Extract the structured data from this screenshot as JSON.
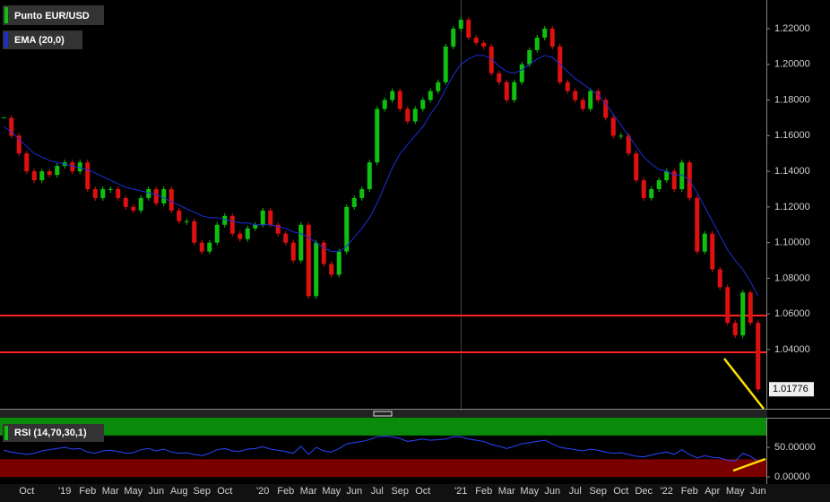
{
  "chart_data": [
    {
      "type": "candlestick",
      "categories": [
        null,
        null,
        null,
        "Oct",
        null,
        null,
        null,
        null,
        "'19",
        null,
        null,
        "Feb",
        null,
        null,
        "Mar",
        null,
        null,
        "May",
        null,
        null,
        "Jun",
        null,
        null,
        "Aug",
        null,
        null,
        "Sep",
        null,
        null,
        "Oct",
        null,
        null,
        null,
        null,
        "'20",
        null,
        null,
        "Feb",
        null,
        null,
        "Mar",
        null,
        null,
        "May",
        null,
        null,
        "Jun",
        null,
        null,
        "Jul",
        null,
        null,
        "Sep",
        null,
        null,
        "Oct",
        null,
        null,
        null,
        null,
        "'21",
        null,
        null,
        "Feb",
        null,
        null,
        "Mar",
        null,
        null,
        "May",
        null,
        null,
        "Jun",
        null,
        null,
        "Jul",
        null,
        null,
        "Sep",
        null,
        null,
        "Oct",
        null,
        null,
        "Dec",
        null,
        null,
        "'22",
        null,
        null,
        "Feb",
        null,
        null,
        "Apr",
        null,
        null,
        "May",
        null,
        null,
        "Jun"
      ],
      "series": [
        {
          "name": "Punto EUR/USD",
          "color": "#10c010",
          "down_color": "#e01010",
          "values": [
            1.17,
            1.16,
            1.15,
            1.14,
            1.135,
            1.14,
            1.138,
            1.143,
            1.145,
            1.14,
            1.145,
            1.13,
            1.125,
            1.13,
            1.13,
            1.125,
            1.12,
            1.118,
            1.125,
            1.13,
            1.122,
            1.13,
            1.118,
            1.112,
            1.112,
            1.1,
            1.095,
            1.1,
            1.11,
            1.115,
            1.105,
            1.102,
            1.108,
            1.11,
            1.118,
            1.11,
            1.105,
            1.1,
            1.09,
            1.11,
            1.07,
            1.1,
            1.088,
            1.082,
            1.095,
            1.12,
            1.125,
            1.13,
            1.145,
            1.175,
            1.18,
            1.185,
            1.175,
            1.168,
            1.175,
            1.18,
            1.185,
            1.19,
            1.21,
            1.22,
            1.225,
            1.215,
            1.212,
            1.21,
            1.195,
            1.19,
            1.18,
            1.19,
            1.2,
            1.208,
            1.215,
            1.22,
            1.21,
            1.19,
            1.185,
            1.18,
            1.175,
            1.185,
            1.18,
            1.17,
            1.16,
            1.16,
            1.15,
            1.135,
            1.125,
            1.13,
            1.135,
            1.14,
            1.13,
            1.145,
            1.125,
            1.095,
            1.105,
            1.085,
            1.075,
            1.055,
            1.048,
            1.072,
            1.055,
            1.01776
          ]
        },
        {
          "name": "EMA (20,0)",
          "type": "line",
          "color": "#1a2fd8",
          "values": [
            1.165,
            1.162,
            1.158,
            1.154,
            1.15,
            1.148,
            1.146,
            1.145,
            1.144,
            1.143,
            1.142,
            1.141,
            1.139,
            1.137,
            1.135,
            1.133,
            1.131,
            1.13,
            1.129,
            1.128,
            1.127,
            1.125,
            1.123,
            1.121,
            1.119,
            1.117,
            1.115,
            1.114,
            1.114,
            1.113,
            1.112,
            1.111,
            1.111,
            1.11,
            1.11,
            1.11,
            1.109,
            1.108,
            1.106,
            1.105,
            1.103,
            1.1,
            1.097,
            1.095,
            1.095,
            1.098,
            1.103,
            1.108,
            1.114,
            1.122,
            1.132,
            1.142,
            1.15,
            1.155,
            1.16,
            1.165,
            1.172,
            1.178,
            1.186,
            1.194,
            1.2,
            1.203,
            1.205,
            1.205,
            1.203,
            1.199,
            1.196,
            1.195,
            1.197,
            1.2,
            1.203,
            1.205,
            1.204,
            1.2,
            1.196,
            1.192,
            1.189,
            1.186,
            1.183,
            1.178,
            1.172,
            1.166,
            1.16,
            1.154,
            1.148,
            1.144,
            1.141,
            1.14,
            1.138,
            1.138,
            1.135,
            1.128,
            1.12,
            1.112,
            1.104,
            1.096,
            1.09,
            1.085,
            1.078,
            1.07
          ]
        }
      ],
      "levels": [
        1.0591,
        1.0385
      ],
      "level_color": "#ff2020",
      "ylim": [
        1.0068,
        1.2361
      ],
      "yticks": [
        {
          "value": 1.04,
          "label": "1.04000"
        },
        {
          "value": 1.06,
          "label": "1.06000"
        },
        {
          "value": 1.08,
          "label": "1.08000"
        },
        {
          "value": 1.1,
          "label": "1.10000"
        },
        {
          "value": 1.12,
          "label": "1.12000"
        },
        {
          "value": 1.14,
          "label": "1.14000"
        },
        {
          "value": 1.16,
          "label": "1.16000"
        },
        {
          "value": 1.18,
          "label": "1.18000"
        },
        {
          "value": 1.2,
          "label": "1.20000"
        },
        {
          "value": 1.22,
          "label": "1.22000"
        }
      ]
    },
    {
      "type": "line",
      "series": [
        {
          "name": "RSI (14,70,30,1)",
          "color": "#2a45ff",
          "values": [
            45,
            42,
            40,
            38,
            40,
            44,
            46,
            48,
            50,
            47,
            48,
            42,
            40,
            44,
            45,
            43,
            40,
            41,
            46,
            48,
            44,
            47,
            42,
            40,
            41,
            38,
            36,
            40,
            46,
            48,
            44,
            43,
            47,
            48,
            51,
            47,
            45,
            43,
            40,
            52,
            38,
            50,
            44,
            42,
            48,
            56,
            58,
            60,
            63,
            68,
            69,
            68,
            65,
            60,
            62,
            64,
            62,
            63,
            64,
            68,
            68,
            64,
            62,
            60,
            55,
            52,
            48,
            52,
            56,
            58,
            60,
            62,
            56,
            50,
            48,
            46,
            44,
            47,
            45,
            42,
            40,
            41,
            38,
            35,
            34,
            37,
            40,
            42,
            38,
            46,
            38,
            32,
            36,
            33,
            32,
            28,
            27,
            40,
            35,
            26
          ]
        }
      ],
      "bands": [
        {
          "range": [
            70,
            100
          ],
          "color": "#0a8a0a"
        },
        {
          "range": [
            0,
            30
          ],
          "color": "#7a0000"
        }
      ],
      "ylim": [
        -12,
        100
      ],
      "yticks": [
        {
          "value": 0,
          "label": "0.00000"
        },
        {
          "value": 50,
          "label": "50.00000"
        }
      ]
    }
  ]
}
